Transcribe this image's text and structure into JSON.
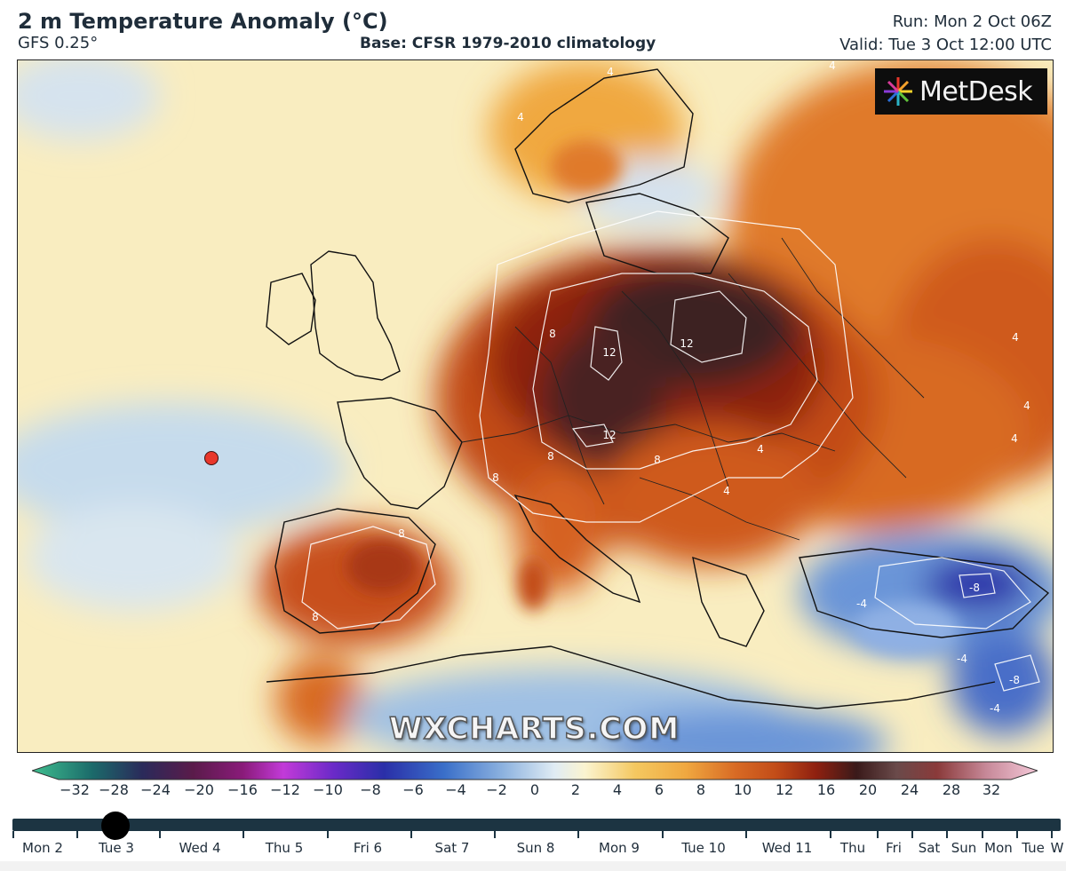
{
  "header": {
    "title": "2 m Temperature Anomaly (°C)",
    "model": "GFS 0.25°",
    "base": "Base: CFSR 1979-2010 climatology",
    "run": "Run: Mon 2 Oct 06Z",
    "valid": "Valid: Tue 3 Oct 12:00 UTC"
  },
  "logo": {
    "text": "MetDesk"
  },
  "watermark": "WXCHARTS.COM",
  "map": {
    "contour_labels": [
      "12",
      "12",
      "12",
      "8",
      "8",
      "8",
      "8",
      "8",
      "8",
      "4",
      "4",
      "4",
      "4",
      "4",
      "4",
      "4",
      "4",
      "-4",
      "-4",
      "-4",
      "-8",
      "-8"
    ],
    "colors": {
      "neutral": "#f9edc0",
      "cool": "#c8dcec",
      "cold": "#3a6fc9",
      "very_cold": "#2a2fa8",
      "warm": "#f0a840",
      "hot": "#cf5a1e",
      "very_hot": "#8e2010",
      "extreme": "#3a2020"
    }
  },
  "colorbar": {
    "labels": [
      "−32",
      "−28",
      "−24",
      "−20",
      "−16",
      "−12",
      "−10",
      "−8",
      "−6",
      "−4",
      "−2",
      "0",
      "2",
      "4",
      "6",
      "8",
      "10",
      "12",
      "16",
      "20",
      "24",
      "28",
      "32"
    ]
  },
  "timeline": {
    "days": [
      "Mon 2",
      "Tue 3",
      "Wed 4",
      "Thu 5",
      "Fri 6",
      "Sat 7",
      "Sun 8",
      "Mon 9",
      "Tue 10",
      "Wed 11",
      "Thu",
      "Fri",
      "Sat",
      "Sun",
      "Mon",
      "Tue",
      "W"
    ],
    "selected": "Tue 3"
  }
}
